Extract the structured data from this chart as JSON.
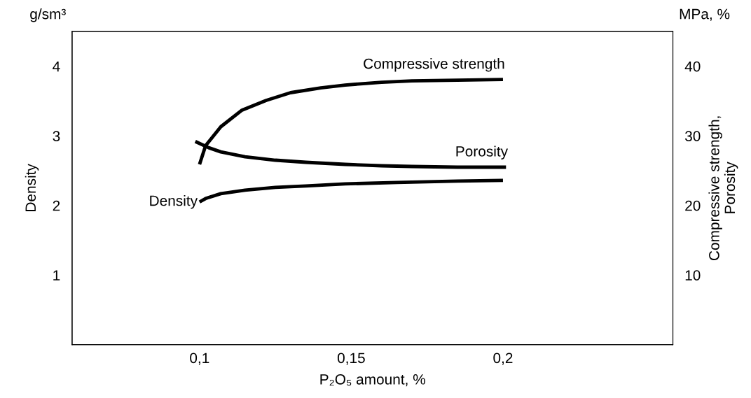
{
  "chart_data": {
    "type": "line",
    "xlabel": "P₂O₅ amount, %",
    "ylabel": "Density",
    "y2label": "Compressive strength,\nPorosity",
    "annotations": [
      "g/sm³",
      "MPa, %"
    ],
    "xlim": [
      0.058,
      0.256
    ],
    "xticks": [
      {
        "value": 0.1,
        "label": "0,1"
      },
      {
        "value": 0.15,
        "label": "0,15"
      },
      {
        "value": 0.2,
        "label": "0,2"
      }
    ],
    "ylim": [
      0,
      4.5
    ],
    "yticks": [
      1,
      2,
      3,
      4
    ],
    "y2lim": [
      0,
      45
    ],
    "y2ticks": [
      10,
      20,
      30,
      40
    ],
    "grid": false,
    "legend": false,
    "marker": "none",
    "line_style": "solid",
    "series": [
      {
        "name": "Compressive strength",
        "color": "#000000",
        "axis": "y2",
        "x": [
          0.1,
          0.102,
          0.107,
          0.114,
          0.122,
          0.13,
          0.14,
          0.148,
          0.16,
          0.17,
          0.185,
          0.2
        ],
        "values": [
          25.9,
          28.6,
          31.3,
          33.7,
          35.1,
          36.2,
          36.9,
          37.3,
          37.7,
          37.9,
          38.0,
          38.1
        ]
      },
      {
        "name": "Porosity",
        "color": "#000000",
        "axis": "y2",
        "x": [
          0.0986,
          0.103,
          0.107,
          0.115,
          0.125,
          0.135,
          0.148,
          0.16,
          0.17,
          0.185,
          0.201
        ],
        "values": [
          29.2,
          28.3,
          27.7,
          27.0,
          26.5,
          26.2,
          25.9,
          25.7,
          25.6,
          25.5,
          25.5
        ]
      },
      {
        "name": "Density",
        "color": "#000000",
        "axis": "y",
        "x": [
          0.1,
          0.102,
          0.107,
          0.115,
          0.125,
          0.135,
          0.148,
          0.165,
          0.185,
          0.2
        ],
        "values": [
          2.05,
          2.1,
          2.17,
          2.22,
          2.26,
          2.28,
          2.31,
          2.33,
          2.35,
          2.36
        ]
      }
    ]
  }
}
